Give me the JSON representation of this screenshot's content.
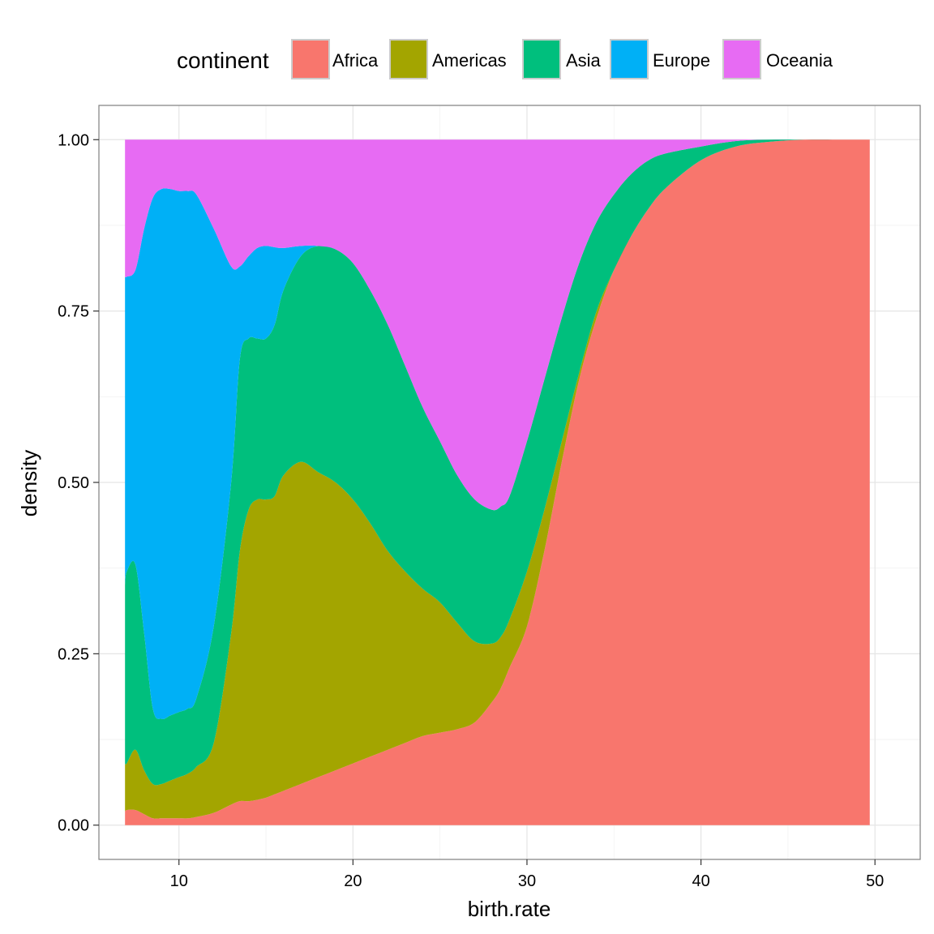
{
  "chart_data": {
    "type": "area",
    "stacking": "fill",
    "xlabel": "birth.rate",
    "ylabel": "density",
    "xlim": [
      5.4,
      52.6
    ],
    "ylim": [
      -0.05,
      1.05
    ],
    "xticks": [
      10,
      20,
      30,
      40,
      50
    ],
    "yticks": [
      0,
      0.25,
      0.5,
      0.75,
      1
    ],
    "ytick_labels": [
      "0.00",
      "0.25",
      "0.50",
      "0.75",
      "1.00"
    ],
    "grid": true,
    "legend": {
      "title": "continent",
      "position": "top"
    },
    "x": [
      6.9,
      7.0,
      7.5,
      8.0,
      8.5,
      9.0,
      9.5,
      10.0,
      10.5,
      11.0,
      12.0,
      13.0,
      13.5,
      14.0,
      14.5,
      15.0,
      15.5,
      16.0,
      17.0,
      18.0,
      19.0,
      20.0,
      21.0,
      22.0,
      23.0,
      24.0,
      25.0,
      26.0,
      27.0,
      28.0,
      28.5,
      29.0,
      30.0,
      31.0,
      32.0,
      33.0,
      34.0,
      35.0,
      36.0,
      37.0,
      38.0,
      40.0,
      42.0,
      44.0,
      46.0,
      48.0,
      49.7
    ],
    "series": [
      {
        "name": "Africa",
        "color": "#F8766D",
        "values": [
          0.02,
          0.022,
          0.022,
          0.016,
          0.01,
          0.01,
          0.01,
          0.01,
          0.01,
          0.012,
          0.018,
          0.03,
          0.035,
          0.035,
          0.037,
          0.04,
          0.045,
          0.05,
          0.06,
          0.07,
          0.08,
          0.09,
          0.1,
          0.11,
          0.12,
          0.13,
          0.135,
          0.14,
          0.15,
          0.18,
          0.2,
          0.23,
          0.29,
          0.4,
          0.53,
          0.65,
          0.74,
          0.81,
          0.86,
          0.9,
          0.93,
          0.97,
          0.99,
          0.997,
          1.0,
          1.0,
          1.0
        ]
      },
      {
        "name": "Americas",
        "color": "#A3A500",
        "values": [
          0.09,
          0.09,
          0.11,
          0.08,
          0.06,
          0.06,
          0.065,
          0.07,
          0.075,
          0.085,
          0.12,
          0.28,
          0.4,
          0.46,
          0.475,
          0.475,
          0.48,
          0.51,
          0.53,
          0.515,
          0.5,
          0.475,
          0.44,
          0.4,
          0.37,
          0.345,
          0.325,
          0.295,
          0.268,
          0.265,
          0.275,
          0.3,
          0.37,
          0.46,
          0.56,
          0.66,
          0.75,
          0.81,
          0.86,
          0.9,
          0.93,
          0.97,
          0.99,
          0.997,
          1.0,
          1.0,
          1.0
        ]
      },
      {
        "name": "Asia",
        "color": "#00BF7D",
        "values": [
          0.35,
          0.37,
          0.38,
          0.28,
          0.17,
          0.155,
          0.16,
          0.165,
          0.17,
          0.185,
          0.29,
          0.5,
          0.68,
          0.71,
          0.71,
          0.71,
          0.73,
          0.78,
          0.83,
          0.845,
          0.84,
          0.82,
          0.78,
          0.73,
          0.67,
          0.61,
          0.56,
          0.51,
          0.475,
          0.46,
          0.465,
          0.48,
          0.56,
          0.65,
          0.74,
          0.82,
          0.88,
          0.92,
          0.95,
          0.97,
          0.98,
          0.99,
          0.998,
          1.0,
          1.0,
          1.0,
          1.0
        ]
      },
      {
        "name": "Europe",
        "color": "#00B0F6",
        "values": [
          0.8,
          0.8,
          0.81,
          0.87,
          0.915,
          0.928,
          0.928,
          0.925,
          0.925,
          0.92,
          0.87,
          0.815,
          0.815,
          0.83,
          0.842,
          0.845,
          0.843,
          0.842,
          0.845,
          0.845,
          0.84,
          0.82,
          0.78,
          0.73,
          0.67,
          0.61,
          0.56,
          0.51,
          0.475,
          0.46,
          0.465,
          0.48,
          0.56,
          0.65,
          0.74,
          0.82,
          0.88,
          0.92,
          0.95,
          0.97,
          0.98,
          0.99,
          0.998,
          1.0,
          1.0,
          1.0,
          1.0
        ]
      },
      {
        "name": "Oceania",
        "color": "#E76BF3",
        "values": [
          1,
          1,
          1,
          1,
          1,
          1,
          1,
          1,
          1,
          1,
          1,
          1,
          1,
          1,
          1,
          1,
          1,
          1,
          1,
          1,
          1,
          1,
          1,
          1,
          1,
          1,
          1,
          1,
          1,
          1,
          1,
          1,
          1,
          1,
          1,
          1,
          1,
          1,
          1,
          1,
          1,
          1,
          1,
          1,
          1,
          1,
          1
        ]
      }
    ]
  }
}
